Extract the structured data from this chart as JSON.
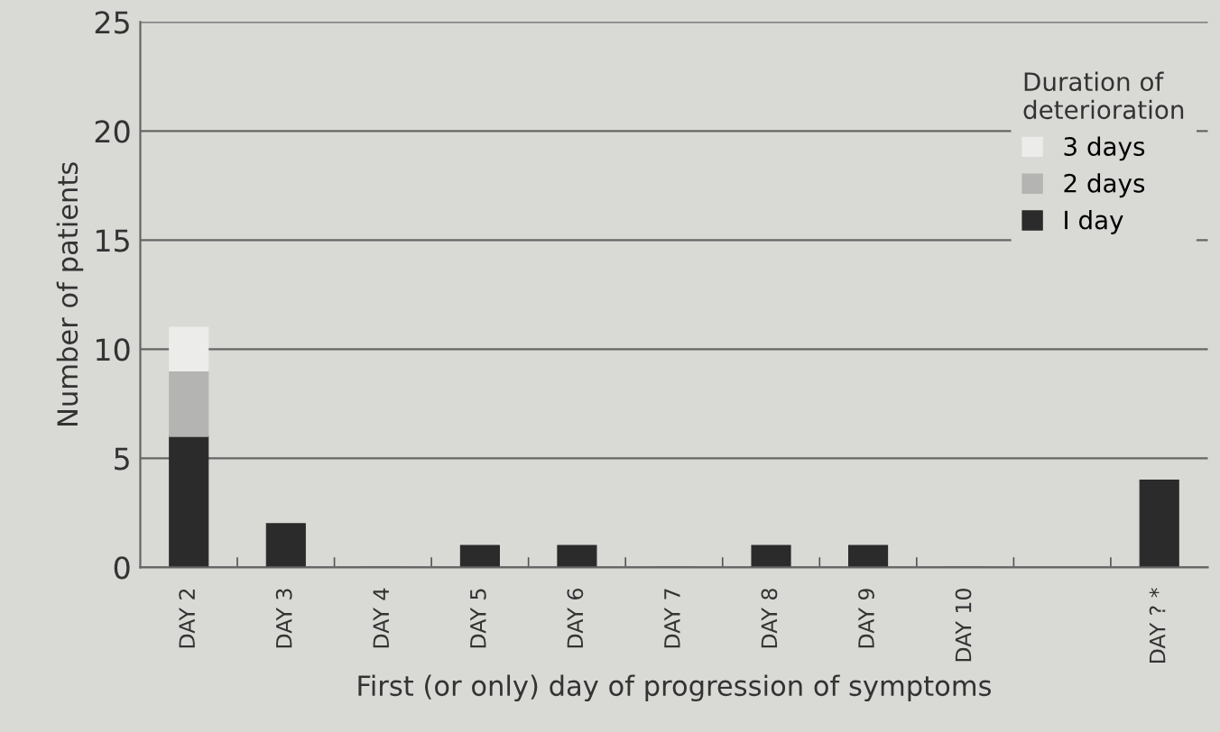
{
  "chart_data": {
    "type": "bar",
    "stacked": true,
    "xlabel": "First (or only) day of progression of symptoms",
    "ylabel": "Number of patients",
    "legend_title": "Duration of\ndeterioration",
    "categories": [
      "DAY 2",
      "DAY 3",
      "DAY 4",
      "DAY 5",
      "DAY 6",
      "DAY 7",
      "DAY 8",
      "DAY 9",
      "DAY 10",
      null,
      "DAY ? *"
    ],
    "series": [
      {
        "name": "I day",
        "color": "#2b2b2b",
        "values": [
          6,
          2,
          0,
          1,
          1,
          0,
          1,
          1,
          0,
          null,
          4
        ]
      },
      {
        "name": "2 days",
        "color": "#b4b4b2",
        "values": [
          3,
          null,
          null,
          null,
          null,
          null,
          null,
          null,
          null,
          null,
          null
        ]
      },
      {
        "name": "3 days",
        "color": "#ececea",
        "values": [
          2,
          null,
          null,
          null,
          null,
          null,
          null,
          null,
          null,
          null,
          null
        ]
      }
    ],
    "ylim": [
      0,
      25
    ],
    "yticks": [
      0,
      5,
      10,
      15,
      20,
      25
    ],
    "grid": "y",
    "legend": "top right"
  }
}
